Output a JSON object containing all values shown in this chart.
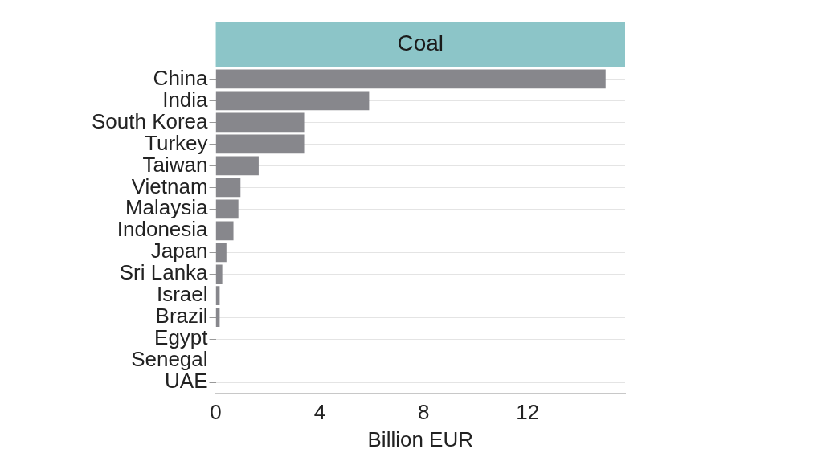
{
  "chart_data": {
    "type": "bar",
    "orientation": "horizontal",
    "title": "Coal",
    "xlabel": "Billion EUR",
    "categories": [
      "China",
      "India",
      "South Korea",
      "Turkey",
      "Taiwan",
      "Vietnam",
      "Malaysia",
      "Indonesia",
      "Japan",
      "Sri Lanka",
      "Israel",
      "Brazil",
      "Egypt",
      "Senegal",
      "UAE"
    ],
    "values": [
      15.0,
      5.9,
      3.4,
      3.4,
      1.65,
      0.95,
      0.87,
      0.68,
      0.41,
      0.25,
      0.15,
      0.15,
      0,
      0,
      0
    ],
    "color": "#87878c",
    "xlim": [
      0,
      15.75
    ],
    "xticks": [
      0,
      4,
      8,
      12
    ],
    "grid": "y",
    "legend": false
  }
}
